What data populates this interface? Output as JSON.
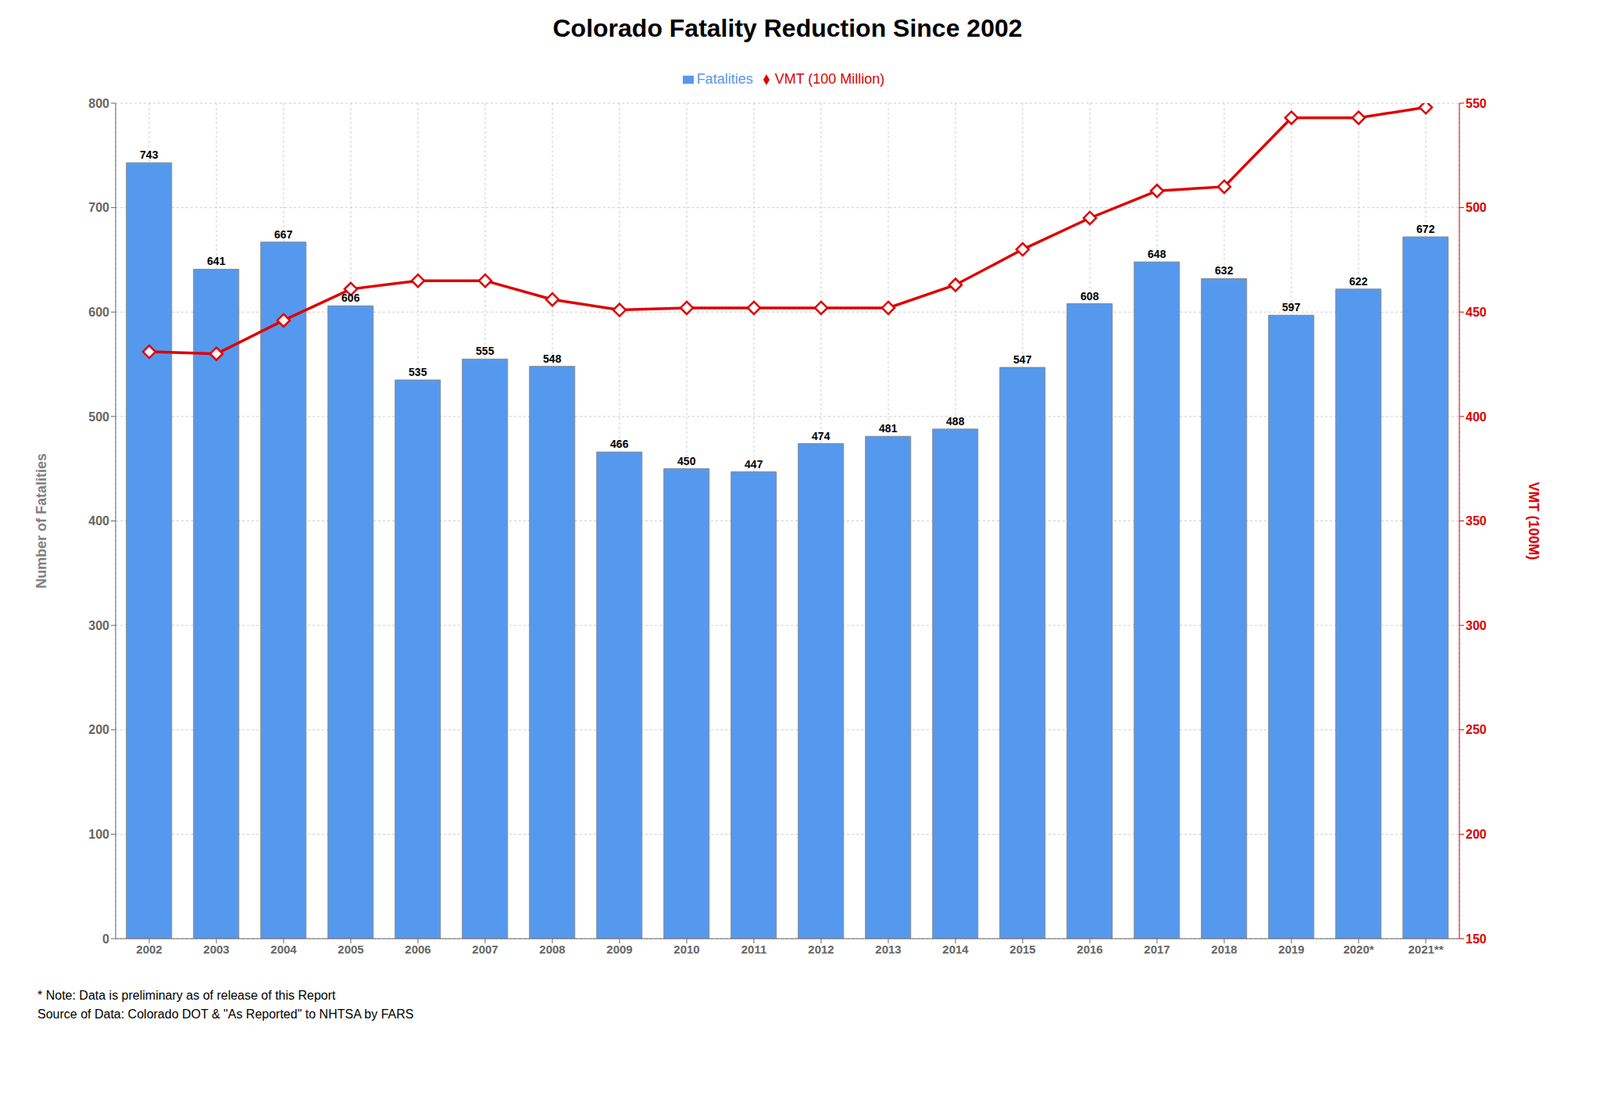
{
  "chart_data": {
    "type": "bar",
    "title": "Colorado Fatality Reduction Since 2002",
    "categories": [
      "2002",
      "2003",
      "2004",
      "2005",
      "2006",
      "2007",
      "2008",
      "2009",
      "2010",
      "2011",
      "2012",
      "2013",
      "2014",
      "2015",
      "2016",
      "2017",
      "2018",
      "2019",
      "2020*",
      "2021**"
    ],
    "series": [
      {
        "name": "Fatalities",
        "type": "bar",
        "color": "#5599ee",
        "data_labels": true,
        "values": [
          743,
          641,
          667,
          606,
          535,
          555,
          548,
          466,
          450,
          447,
          474,
          481,
          488,
          547,
          608,
          648,
          632,
          597,
          622,
          672
        ]
      },
      {
        "name": "VMT (100 Million)",
        "type": "line",
        "axis": "y2",
        "color": "#dd0000",
        "marker": "diamond",
        "values": [
          431,
          430,
          446,
          461,
          465,
          465,
          456,
          451,
          452,
          452,
          452,
          452,
          463,
          480,
          495,
          508,
          510,
          543,
          543,
          548
        ]
      }
    ],
    "ylabel": "Number of Fatalities",
    "y2label": "VMT (100M)",
    "ylim": [
      0,
      800
    ],
    "yticks": [
      0,
      100,
      200,
      300,
      400,
      500,
      600,
      700,
      800
    ],
    "y2lim": [
      150,
      550
    ],
    "y2ticks": [
      150,
      200,
      250,
      300,
      350,
      400,
      450,
      500,
      550
    ],
    "grid": true,
    "legend": "top",
    "annotations": [
      "* Note: Data is preliminary as of release of this Report",
      "Source of Data: Colorado DOT & \"As Reported\" to NHTSA by FARS"
    ]
  }
}
